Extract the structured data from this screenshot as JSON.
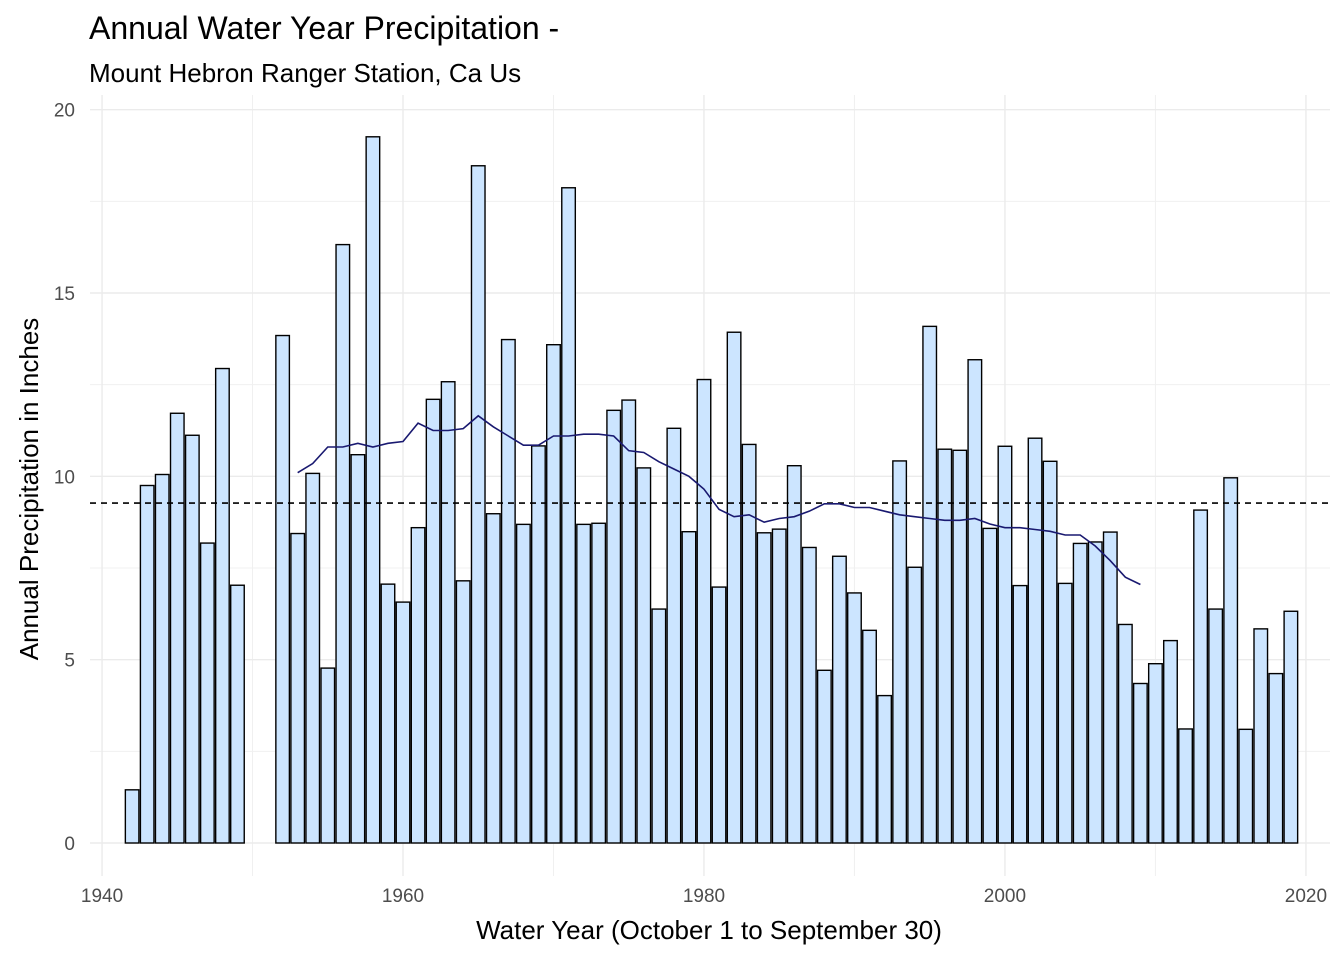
{
  "chart_data": {
    "type": "bar",
    "title": "Annual Water Year Precipitation -",
    "subtitle": "Mount Hebron Ranger Station, Ca Us",
    "xlabel": "Water Year (October 1 to September 30)",
    "ylabel": "Annual Precipitation in Inches",
    "xlim": [
      1939.2,
      2021.6
    ],
    "ylim": [
      -0.9,
      20.4
    ],
    "x_ticks": [
      1940,
      1960,
      1980,
      2000,
      2020
    ],
    "y_ticks": [
      0,
      5,
      10,
      15,
      20
    ],
    "grid": true,
    "bar_fill": "#cce5ff",
    "bar_stroke": "#000000",
    "x": [
      1942,
      1943,
      1944,
      1945,
      1946,
      1947,
      1948,
      1949,
      1952,
      1953,
      1954,
      1955,
      1956,
      1957,
      1958,
      1959,
      1960,
      1961,
      1962,
      1963,
      1964,
      1965,
      1966,
      1967,
      1968,
      1969,
      1970,
      1971,
      1972,
      1973,
      1974,
      1975,
      1976,
      1977,
      1978,
      1979,
      1980,
      1981,
      1982,
      1983,
      1984,
      1985,
      1986,
      1987,
      1988,
      1989,
      1990,
      1991,
      1992,
      1993,
      1994,
      1995,
      1996,
      1997,
      1998,
      1999,
      2000,
      2001,
      2002,
      2003,
      2004,
      2005,
      2006,
      2007,
      2008,
      2009,
      2010,
      2011,
      2012,
      2013,
      2014,
      2015,
      2016,
      2017,
      2018,
      2019
    ],
    "values": [
      1.45,
      9.75,
      10.05,
      11.72,
      11.12,
      8.18,
      12.94,
      7.03,
      13.84,
      8.44,
      10.08,
      4.77,
      16.32,
      10.59,
      19.26,
      7.06,
      6.57,
      8.6,
      12.1,
      12.58,
      7.15,
      18.47,
      8.98,
      13.73,
      8.69,
      10.83,
      13.59,
      17.87,
      8.69,
      8.72,
      11.8,
      12.08,
      10.23,
      6.38,
      11.31,
      8.49,
      12.64,
      6.98,
      13.93,
      10.87,
      8.46,
      8.56,
      10.29,
      8.06,
      4.71,
      7.82,
      6.82,
      5.8,
      4.02,
      10.42,
      7.52,
      14.09,
      10.74,
      10.71,
      13.18,
      8.58,
      10.82,
      7.02,
      11.04,
      10.41,
      7.08,
      8.17,
      8.21,
      8.48,
      5.96,
      4.35,
      4.89,
      5.52,
      3.11,
      9.08,
      6.38,
      9.96,
      3.1,
      5.84,
      4.62,
      6.32
    ],
    "mean_line": {
      "y": 9.27,
      "stroke": "#000000",
      "dash": true
    },
    "moving_average": {
      "stroke": "#191970",
      "x": [
        1953,
        1954,
        1955,
        1956,
        1957,
        1958,
        1959,
        1960,
        1961,
        1962,
        1963,
        1964,
        1965,
        1966,
        1967,
        1968,
        1969,
        1970,
        1971,
        1972,
        1973,
        1974,
        1975,
        1976,
        1977,
        1978,
        1979,
        1980,
        1981,
        1982,
        1983,
        1984,
        1985,
        1986,
        1987,
        1988,
        1989,
        1990,
        1991,
        1992,
        1993,
        1994,
        1995,
        1996,
        1997,
        1998,
        1999,
        2000,
        2001,
        2002,
        2003,
        2004,
        2005,
        2006,
        2007,
        2008,
        2009
      ],
      "y": [
        10.1,
        10.35,
        10.8,
        10.8,
        10.9,
        10.8,
        10.9,
        10.95,
        11.45,
        11.25,
        11.25,
        11.3,
        11.65,
        11.35,
        11.1,
        10.85,
        10.85,
        11.1,
        11.1,
        11.15,
        11.15,
        11.1,
        10.7,
        10.65,
        10.4,
        10.2,
        10.0,
        9.65,
        9.1,
        8.9,
        8.95,
        8.75,
        8.85,
        8.9,
        9.05,
        9.25,
        9.25,
        9.15,
        9.15,
        9.05,
        8.95,
        8.9,
        8.85,
        8.8,
        8.8,
        8.85,
        8.7,
        8.6,
        8.6,
        8.55,
        8.5,
        8.4,
        8.4,
        8.1,
        7.7,
        7.25,
        7.05
      ]
    }
  }
}
